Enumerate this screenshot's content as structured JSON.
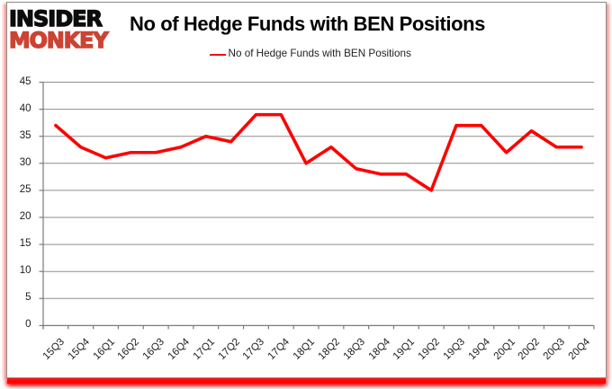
{
  "logo": {
    "line1": "INSIDER",
    "line2": "MONKEY",
    "line1_color": "#0c0c0c",
    "line2_color": "#cc4334"
  },
  "title": "No of Hedge Funds with BEN Positions",
  "legend": {
    "label": "No of Hedge Funds with BEN Positions",
    "line_color": "#ff0000"
  },
  "chart_data": {
    "type": "line",
    "title": "No of Hedge Funds with BEN Positions",
    "categories": [
      "15Q3",
      "15Q4",
      "16Q1",
      "16Q2",
      "16Q3",
      "16Q4",
      "17Q1",
      "17Q2",
      "17Q3",
      "17Q4",
      "18Q1",
      "18Q2",
      "18Q3",
      "18Q4",
      "19Q1",
      "19Q2",
      "19Q3",
      "19Q4",
      "20Q1",
      "20Q2",
      "20Q3",
      "20Q4"
    ],
    "series": [
      {
        "name": "No of Hedge Funds with BEN Positions",
        "color": "#ff0000",
        "values": [
          37,
          33,
          31,
          32,
          32,
          33,
          35,
          34,
          39,
          39,
          30,
          33,
          29,
          28,
          28,
          25,
          37,
          37,
          32,
          36,
          33,
          33
        ]
      }
    ],
    "xlabel": "",
    "ylabel": "",
    "ylim": [
      0,
      45
    ],
    "ytick_step": 5,
    "grid": true,
    "gridline_color": "#8f8f8f",
    "axis_color": "#7a7a7a",
    "legend_position": "top"
  }
}
